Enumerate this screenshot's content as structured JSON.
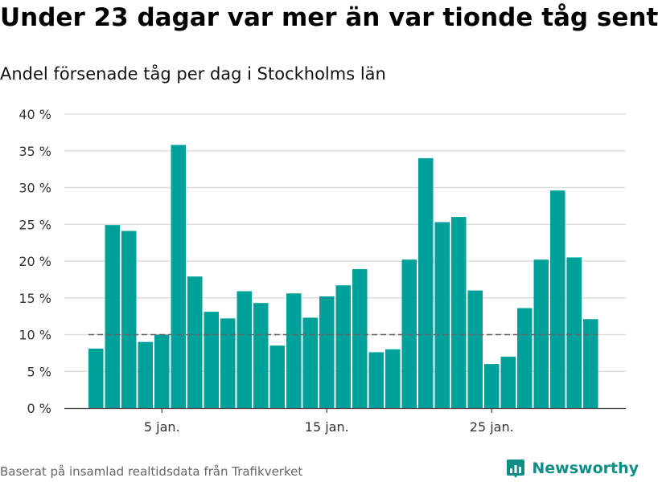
{
  "title": "Under 23 dagar var mer än var tionde tåg sent",
  "subtitle": "Andel försenade tåg per dag i Stockholms län",
  "source": "Baserat på insamlad realtidsdata från Trafikverket",
  "brand": {
    "name": "Newsworthy",
    "logo_icon": "bar-chart-logo-icon"
  },
  "colors": {
    "bar": "#00a19a",
    "grid": "#dddddd",
    "reference_line": "#666666",
    "brand": "#0e8f86"
  },
  "chart_data": {
    "type": "bar",
    "title": "Under 23 dagar var mer än var tionde tåg sent",
    "subtitle": "Andel försenade tåg per dag i Stockholms län",
    "x": [
      1,
      2,
      3,
      4,
      5,
      6,
      7,
      8,
      9,
      10,
      11,
      12,
      13,
      14,
      15,
      16,
      17,
      18,
      19,
      20,
      21,
      22,
      23,
      24,
      25,
      26,
      27,
      28,
      29,
      30,
      31
    ],
    "values": [
      8.1,
      24.9,
      24.1,
      9.0,
      10.0,
      35.8,
      17.9,
      13.1,
      12.2,
      15.9,
      14.3,
      8.5,
      15.6,
      12.3,
      15.2,
      16.7,
      18.9,
      7.6,
      8.0,
      20.2,
      34.0,
      25.3,
      26.0,
      16.0,
      6.0,
      7.0,
      13.6,
      20.2,
      29.6,
      20.5,
      12.1
    ],
    "unit": "%",
    "xlabel": "",
    "ylabel": "",
    "ylim": [
      0,
      40
    ],
    "yticks": [
      0,
      5,
      10,
      15,
      20,
      25,
      30,
      35,
      40
    ],
    "ytick_labels": [
      "0 %",
      "5 %",
      "10 %",
      "15 %",
      "20 %",
      "25 %",
      "30 %",
      "35 %",
      "40 %"
    ],
    "xticks": [
      5,
      15,
      25
    ],
    "xtick_labels": [
      "5 jan.",
      "15 jan.",
      "25 jan."
    ],
    "reference_line": {
      "value": 10,
      "style": "dashed"
    },
    "grid": true,
    "legend": "none"
  }
}
